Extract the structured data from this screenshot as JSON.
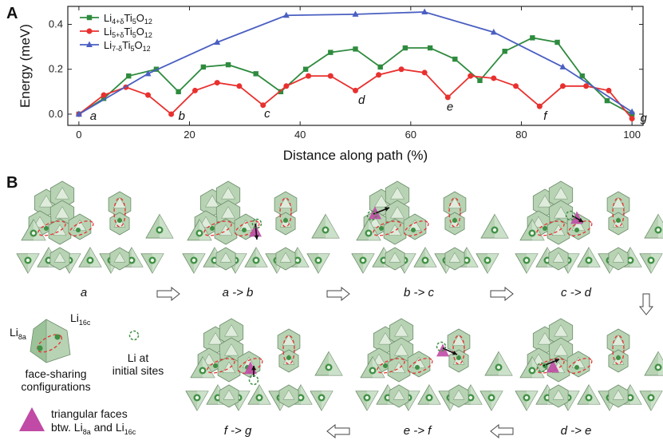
{
  "panel_a_label": "A",
  "panel_b_label": "B",
  "chart_data": {
    "type": "line",
    "xlabel": "Distance along path (%)",
    "ylabel": "Energy (meV)",
    "xlim": [
      -2,
      102
    ],
    "ylim": [
      -0.05,
      0.48
    ],
    "xticks": [
      0,
      20,
      40,
      60,
      80,
      100
    ],
    "yticks": [
      0.0,
      0.2,
      0.4
    ],
    "ytick_labels": [
      "0.0",
      "0.2",
      "0.4"
    ],
    "legend_position": "top-left",
    "series": [
      {
        "name": "Li4+δTi5O12",
        "base": "Li",
        "sub1": "4+δ",
        "mid": "Ti",
        "sub2": "5",
        "end": "O",
        "sub3": "12",
        "color": "#2e8b3e",
        "marker": "square",
        "x": [
          0,
          4.5,
          9,
          14,
          18,
          22.5,
          27,
          32,
          36.5,
          41,
          45.5,
          50,
          54.5,
          59,
          63.5,
          68,
          72.5,
          77,
          82,
          86.5,
          91,
          95.5,
          100
        ],
        "y": [
          0.0,
          0.07,
          0.17,
          0.2,
          0.1,
          0.21,
          0.22,
          0.18,
          0.1,
          0.2,
          0.275,
          0.29,
          0.21,
          0.295,
          0.295,
          0.245,
          0.15,
          0.28,
          0.34,
          0.32,
          0.17,
          0.06,
          0.0
        ]
      },
      {
        "name": "Li5+δTi5O12",
        "base": "Li",
        "sub1": "5+δ",
        "mid": "Ti",
        "sub2": "5",
        "end": "O",
        "sub3": "12",
        "color": "#e8312f",
        "marker": "circle",
        "x": [
          0,
          4.5,
          8.5,
          12.5,
          16.7,
          21,
          25,
          29,
          33.3,
          37.5,
          41.5,
          45.5,
          50,
          54.2,
          58.3,
          62.5,
          66.7,
          70.8,
          75,
          79,
          83.3,
          87.5,
          91.7,
          95.8,
          100
        ],
        "y": [
          0.0,
          0.085,
          0.12,
          0.085,
          0.0,
          0.105,
          0.14,
          0.125,
          0.04,
          0.125,
          0.17,
          0.17,
          0.105,
          0.175,
          0.2,
          0.185,
          0.075,
          0.17,
          0.16,
          0.125,
          0.035,
          0.125,
          0.125,
          0.105,
          -0.02
        ]
      },
      {
        "name": "Li7-δTi5O12",
        "base": "Li",
        "sub1": "7-δ",
        "mid": "Ti",
        "sub2": "5",
        "end": "O",
        "sub3": "12",
        "color": "#4a5fc1",
        "marker": "triangle",
        "x": [
          0,
          12.5,
          25,
          37.5,
          50,
          62.5,
          75,
          87.5,
          100
        ],
        "y": [
          0.0,
          0.18,
          0.32,
          0.44,
          0.445,
          0.455,
          0.365,
          0.21,
          0.01
        ]
      }
    ],
    "annotations": [
      {
        "text": "a",
        "x": 2,
        "y": -0.01
      },
      {
        "text": "b",
        "x": 18,
        "y": -0.01
      },
      {
        "text": "c",
        "x": 33.5,
        "y": 0.0
      },
      {
        "text": "d",
        "x": 50.5,
        "y": 0.06
      },
      {
        "text": "e",
        "x": 66.5,
        "y": 0.03
      },
      {
        "text": "f",
        "x": 84,
        "y": -0.01
      },
      {
        "text": "g",
        "x": 101.5,
        "y": -0.02
      }
    ]
  },
  "steps": {
    "s1": "a",
    "s2": "a -> b",
    "s3": "b -> c",
    "s4": "c -> d",
    "s5": "d -> e",
    "s6": "e -> f",
    "s7": "f -> g"
  },
  "legend_b": {
    "li8a_base": "Li",
    "li8a_sub": "8a",
    "li16c_base": "Li",
    "li16c_sub": "16c",
    "face_sharing_1": "face-sharing",
    "face_sharing_2": "configurations",
    "initial_1": "Li at",
    "initial_2": "initial sites",
    "faces_1": "triangular faces",
    "faces_2_pre": "btw. Li",
    "faces_2_sub1": "8a",
    "faces_2_mid": " and Li",
    "faces_2_sub2": "16c"
  },
  "colors": {
    "poly_fill": "#b7d3b3",
    "poly_edge": "#6d8d6b",
    "poly_light": "#dfecdc",
    "atom_dark": "#3f8f44",
    "atom_ring": "#eaf5e6",
    "ellipse": "#e8312f",
    "magenta": "#c04aa5"
  }
}
